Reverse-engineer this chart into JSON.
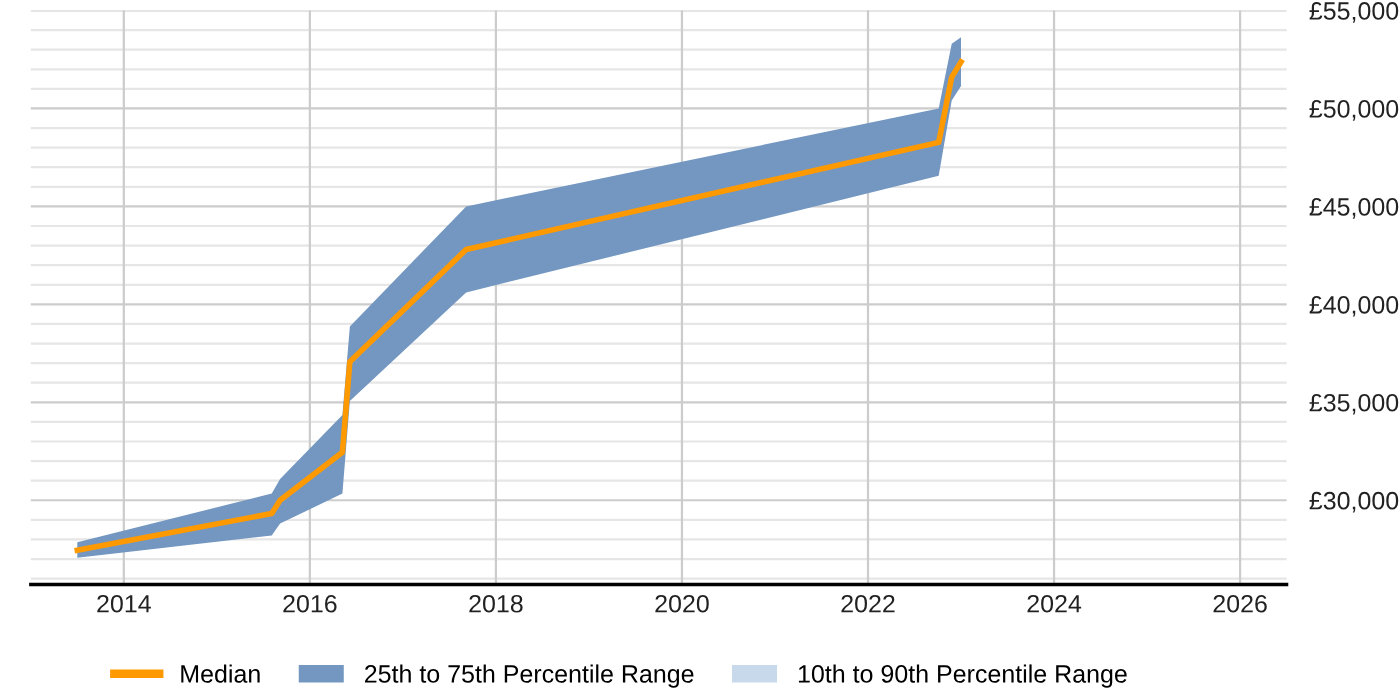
{
  "chart_data": {
    "type": "line",
    "x": [
      2013.5,
      2015.59,
      2015.68,
      2016.35,
      2016.43,
      2017.68,
      2022.76,
      2022.9,
      2023.0
    ],
    "series": [
      {
        "name": "Median",
        "color": "#ff9900",
        "values": [
          27450,
          29320,
          30000,
          32450,
          37070,
          42800,
          48270,
          51600,
          52380
        ],
        "lower": [
          27070,
          28200,
          28810,
          30340,
          35070,
          40610,
          46560,
          50400,
          51150
        ],
        "upper": [
          27860,
          30340,
          31090,
          34350,
          38870,
          45000,
          50000,
          53300,
          53640
        ]
      },
      {
        "name": "25th to 75th Percentile Range",
        "type": "area",
        "color": "#7397c0",
        "values": [
          null,
          null,
          null,
          null,
          null,
          null,
          null,
          null,
          null
        ]
      },
      {
        "name": "10th to 90th Percentile Range",
        "type": "area",
        "color": "#c8d9ec",
        "values": [
          null,
          null,
          null,
          null,
          null,
          null,
          null,
          null,
          null
        ]
      }
    ],
    "xlim": [
      2013,
      2026.5
    ],
    "xticks": [
      2014,
      2016,
      2018,
      2020,
      2022,
      2024,
      2026
    ],
    "ylim": [
      25700,
      55000
    ],
    "yticks": [
      {
        "value": 26000,
        "label": null
      },
      {
        "value": 27000,
        "label": null
      },
      {
        "value": 28000,
        "label": null
      },
      {
        "value": 29000,
        "label": null
      },
      {
        "value": 30000,
        "label": "£30,000"
      },
      {
        "value": 31000,
        "label": null
      },
      {
        "value": 32000,
        "label": null
      },
      {
        "value": 33000,
        "label": null
      },
      {
        "value": 34000,
        "label": null
      },
      {
        "value": 35000,
        "label": "£35,000"
      },
      {
        "value": 36000,
        "label": null
      },
      {
        "value": 37000,
        "label": null
      },
      {
        "value": 38000,
        "label": null
      },
      {
        "value": 39000,
        "label": null
      },
      {
        "value": 40000,
        "label": "£40,000"
      },
      {
        "value": 41000,
        "label": null
      },
      {
        "value": 42000,
        "label": null
      },
      {
        "value": 43000,
        "label": null
      },
      {
        "value": 44000,
        "label": null
      },
      {
        "value": 45000,
        "label": "£45,000"
      },
      {
        "value": 46000,
        "label": null
      },
      {
        "value": 47000,
        "label": null
      },
      {
        "value": 48000,
        "label": null
      },
      {
        "value": 49000,
        "label": null
      },
      {
        "value": 50000,
        "label": "£50,000"
      },
      {
        "value": 51000,
        "label": null
      },
      {
        "value": 52000,
        "label": null
      },
      {
        "value": 53000,
        "label": null
      },
      {
        "value": 54000,
        "label": null
      },
      {
        "value": 55000,
        "label": "£55,000"
      }
    ],
    "grid": true,
    "legend": "bottom"
  }
}
